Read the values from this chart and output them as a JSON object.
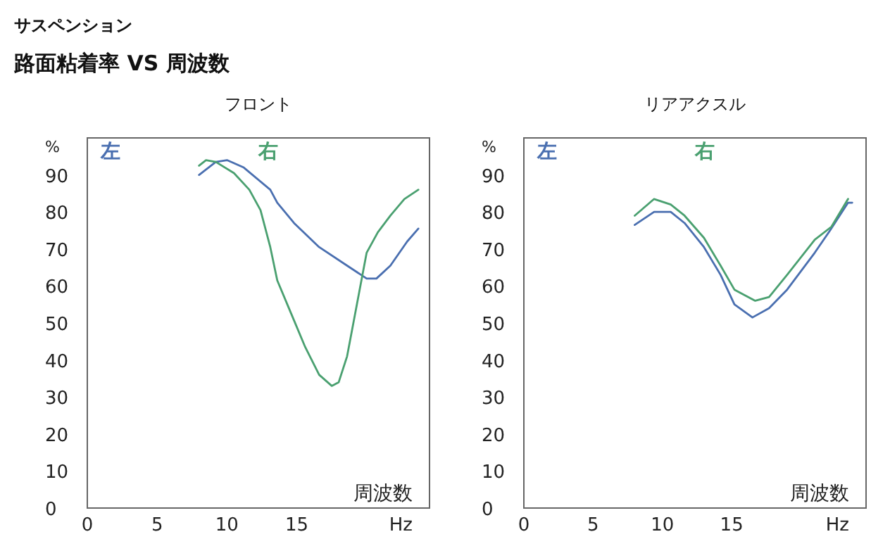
{
  "chart_data": [
    {
      "type": "line",
      "title": "フロント",
      "ylabel": "%",
      "xlabel": "Hz",
      "annotations": [
        "サスペンション",
        "路面粘着率 VS 周波数",
        "周波数"
      ],
      "xlim": [
        0,
        24.5
      ],
      "ylim": [
        0,
        100
      ],
      "xticks": [
        0,
        5,
        10,
        15
      ],
      "yticks": [
        0,
        10,
        20,
        30,
        40,
        50,
        60,
        70,
        80,
        90
      ],
      "grid": false,
      "legend": "top",
      "series": [
        {
          "name": "左",
          "color": "#4a6fb0",
          "x": [
            8.0,
            9.2,
            10.0,
            11.2,
            13.1,
            13.6,
            14.8,
            16.6,
            18.6,
            20.0,
            20.7,
            21.7,
            22.9,
            23.7
          ],
          "values": [
            90,
            93.5,
            94,
            92,
            86,
            82.5,
            77,
            70.5,
            65.5,
            62,
            62,
            65.5,
            72,
            75.5
          ]
        },
        {
          "name": "右",
          "color": "#4aa070",
          "x": [
            8.0,
            8.5,
            9.2,
            10.5,
            11.6,
            12.4,
            13.1,
            13.6,
            14.6,
            15.6,
            16.6,
            17.5,
            18.0,
            18.6,
            19.3,
            20.0,
            20.8,
            21.7,
            22.7,
            23.7
          ],
          "values": [
            92.5,
            94,
            93.5,
            90.5,
            86,
            80.5,
            70.5,
            61.5,
            52.5,
            43.5,
            36,
            33,
            34,
            41,
            55,
            69,
            74.5,
            79,
            83.5,
            86
          ]
        }
      ]
    },
    {
      "type": "line",
      "title": "リアアクスル",
      "ylabel": "%",
      "xlabel": "Hz",
      "annotations": [
        "周波数"
      ],
      "xlim": [
        0,
        24.7
      ],
      "ylim": [
        0,
        100
      ],
      "xticks": [
        0,
        5,
        10,
        15
      ],
      "yticks": [
        0,
        10,
        20,
        30,
        40,
        50,
        60,
        70,
        80,
        90
      ],
      "grid": false,
      "legend": "top",
      "series": [
        {
          "name": "左",
          "color": "#4a6fb0",
          "x": [
            8.0,
            9.4,
            10.6,
            11.6,
            13.0,
            14.2,
            15.2,
            16.5,
            17.7,
            19.0,
            21.0,
            22.1,
            23.4,
            23.7
          ],
          "values": [
            76.5,
            80,
            80,
            77,
            70.5,
            63,
            55,
            51.5,
            54,
            59,
            69,
            75,
            82.5,
            82.5
          ]
        },
        {
          "name": "右",
          "color": "#4aa070",
          "x": [
            8.0,
            9.4,
            10.6,
            11.6,
            13.0,
            14.2,
            15.2,
            16.7,
            17.7,
            19.0,
            21.0,
            22.2,
            23.4
          ],
          "values": [
            79,
            83.5,
            82,
            79,
            73,
            65.5,
            59,
            56,
            57,
            63,
            72.5,
            76,
            83.5
          ]
        }
      ]
    }
  ]
}
